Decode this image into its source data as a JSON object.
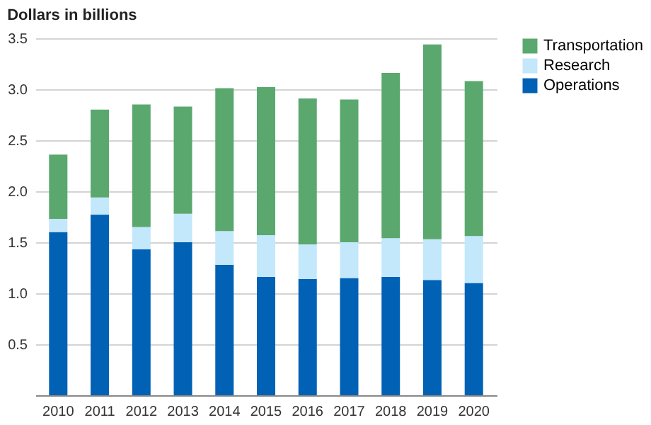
{
  "chart_data": {
    "type": "bar",
    "title": "Dollars in billions",
    "categories": [
      "2010",
      "2011",
      "2012",
      "2013",
      "2014",
      "2015",
      "2016",
      "2017",
      "2018",
      "2019",
      "2020"
    ],
    "stacked": true,
    "series": [
      {
        "name": "Operations",
        "color": "#0061b5",
        "values": [
          1.6,
          1.77,
          1.43,
          1.5,
          1.28,
          1.16,
          1.14,
          1.15,
          1.16,
          1.13,
          1.1
        ]
      },
      {
        "name": "Research",
        "color": "#c3e7fb",
        "values": [
          0.13,
          0.17,
          0.22,
          0.28,
          0.33,
          0.41,
          0.34,
          0.35,
          0.38,
          0.4,
          0.46
        ]
      },
      {
        "name": "Transportation",
        "color": "#5aa86e",
        "values": [
          0.63,
          0.86,
          1.2,
          1.05,
          1.4,
          1.45,
          1.43,
          1.4,
          1.62,
          1.91,
          1.52
        ]
      }
    ],
    "ylim": [
      0,
      3.5
    ],
    "yticks": [
      0.5,
      {
        "value": 1,
        "label": "1.0"
      },
      1.5,
      {
        "value": 2,
        "label": "2.0"
      },
      2.5,
      {
        "value": 3,
        "label": "3.0"
      },
      3.5
    ],
    "grid": "y",
    "legend": "right"
  }
}
